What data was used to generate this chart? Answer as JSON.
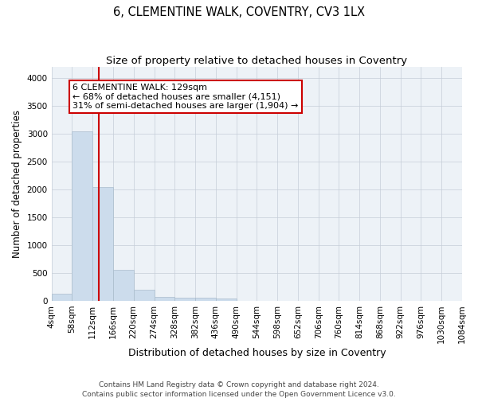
{
  "title": "6, CLEMENTINE WALK, COVENTRY, CV3 1LX",
  "subtitle": "Size of property relative to detached houses in Coventry",
  "xlabel": "Distribution of detached houses by size in Coventry",
  "ylabel": "Number of detached properties",
  "footer1": "Contains HM Land Registry data © Crown copyright and database right 2024.",
  "footer2": "Contains public sector information licensed under the Open Government Licence v3.0.",
  "bin_edges": [
    4,
    58,
    112,
    166,
    220,
    274,
    328,
    382,
    436,
    490,
    544,
    598,
    652,
    706,
    760,
    814,
    868,
    922,
    976,
    1030,
    1084
  ],
  "bar_heights": [
    130,
    3050,
    2050,
    560,
    200,
    70,
    55,
    50,
    40,
    5,
    3,
    2,
    1,
    1,
    1,
    0,
    0,
    0,
    0,
    0
  ],
  "bar_color": "#ccdcec",
  "bar_edgecolor": "#aabccc",
  "vline_x": 129,
  "vline_color": "#cc0000",
  "annotation_line1": "6 CLEMENTINE WALK: 129sqm",
  "annotation_line2": "← 68% of detached houses are smaller (4,151)",
  "annotation_line3": "31% of semi-detached houses are larger (1,904) →",
  "ylim": [
    0,
    4200
  ],
  "yticks": [
    0,
    500,
    1000,
    1500,
    2000,
    2500,
    3000,
    3500,
    4000
  ],
  "bg_color": "#edf2f7",
  "grid_color": "#c5cdd8",
  "title_fontsize": 10.5,
  "subtitle_fontsize": 9.5,
  "xlabel_fontsize": 9,
  "ylabel_fontsize": 8.5,
  "tick_fontsize": 7.5,
  "annotation_fontsize": 8,
  "footer_fontsize": 6.5
}
